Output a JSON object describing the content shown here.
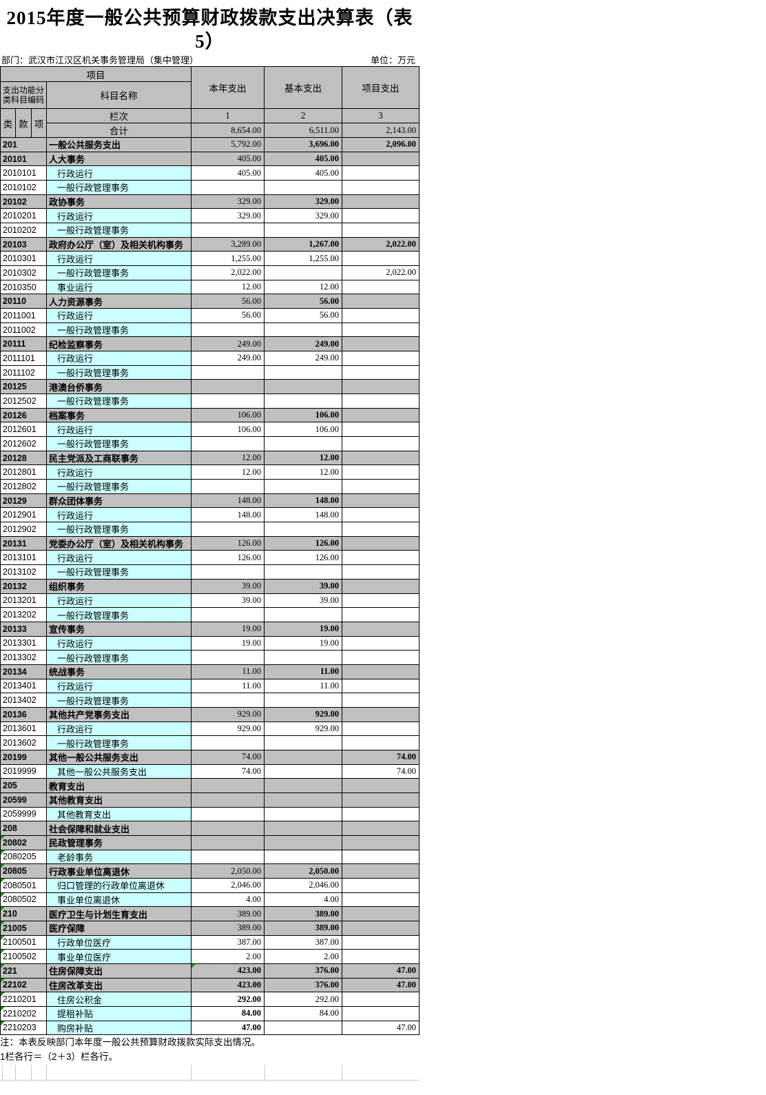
{
  "title": "2015年度一般公共预算财政拨款支出决算表（表5）",
  "meta": {
    "department": "部门：武汉市江汉区机关事务管理局（集中管理）",
    "unit": "单位：万元"
  },
  "header": {
    "project": "项目",
    "code_label": "支出功能分类科目编码",
    "subject_label": "科目名称",
    "col1": "本年支出",
    "col2": "基本支出",
    "col3": "项目支出",
    "cls": "类",
    "section": "款",
    "item": "项",
    "rank_label": "栏次",
    "rank1": "1",
    "rank2": "2",
    "rank3": "3",
    "total_label": "合计",
    "total1": "8,654.00",
    "total2": "6,511.00",
    "total3": "2,143.00"
  },
  "rows": [
    {
      "code": "201",
      "name": "一般公共服务支出",
      "v1": "5,792.00",
      "v2": "3,696.00",
      "v3": "2,096.00",
      "t": "c"
    },
    {
      "code": "20101",
      "name": "人大事务",
      "v1": "405.00",
      "v2": "405.00",
      "v3": "",
      "t": "c"
    },
    {
      "code": "2010101",
      "name": "行政运行",
      "v1": "405.00",
      "v2": "405.00",
      "v3": "",
      "t": "s"
    },
    {
      "code": "2010102",
      "name": "一般行政管理事务",
      "v1": "",
      "v2": "",
      "v3": "",
      "t": "s"
    },
    {
      "code": "20102",
      "name": "政协事务",
      "v1": "329.00",
      "v2": "329.00",
      "v3": "",
      "t": "c"
    },
    {
      "code": "2010201",
      "name": "行政运行",
      "v1": "329.00",
      "v2": "329.00",
      "v3": "",
      "t": "s"
    },
    {
      "code": "2010202",
      "name": "一般行政管理事务",
      "v1": "",
      "v2": "",
      "v3": "",
      "t": "s"
    },
    {
      "code": "20103",
      "name": "政府办公厅（室）及相关机构事务",
      "v1": "3,289.00",
      "v2": "1,267.00",
      "v3": "2,022.00",
      "t": "c"
    },
    {
      "code": "2010301",
      "name": "行政运行",
      "v1": "1,255.00",
      "v2": "1,255.00",
      "v3": "",
      "t": "s"
    },
    {
      "code": "2010302",
      "name": "一般行政管理事务",
      "v1": "2,022.00",
      "v2": "",
      "v3": "2,022.00",
      "t": "s"
    },
    {
      "code": "2010350",
      "name": "事业运行",
      "v1": "12.00",
      "v2": "12.00",
      "v3": "",
      "t": "s"
    },
    {
      "code": "20110",
      "name": "人力资源事务",
      "v1": "56.00",
      "v2": "56.00",
      "v3": "",
      "t": "c"
    },
    {
      "code": "2011001",
      "name": "行政运行",
      "v1": "56.00",
      "v2": "56.00",
      "v3": "",
      "t": "s"
    },
    {
      "code": "2011002",
      "name": "一般行政管理事务",
      "v1": "",
      "v2": "",
      "v3": "",
      "t": "s"
    },
    {
      "code": "20111",
      "name": "纪检监察事务",
      "v1": "249.00",
      "v2": "249.00",
      "v3": "",
      "t": "c"
    },
    {
      "code": "2011101",
      "name": "行政运行",
      "v1": "249.00",
      "v2": "249.00",
      "v3": "",
      "t": "s"
    },
    {
      "code": "2011102",
      "name": "一般行政管理事务",
      "v1": "",
      "v2": "",
      "v3": "",
      "t": "s"
    },
    {
      "code": "20125",
      "name": "港澳台侨事务",
      "v1": "",
      "v2": "",
      "v3": "",
      "t": "c"
    },
    {
      "code": "2012502",
      "name": "一般行政管理事务",
      "v1": "",
      "v2": "",
      "v3": "",
      "t": "s"
    },
    {
      "code": "20126",
      "name": "档案事务",
      "v1": "106.00",
      "v2": "106.00",
      "v3": "",
      "t": "c"
    },
    {
      "code": "2012601",
      "name": "行政运行",
      "v1": "106.00",
      "v2": "106.00",
      "v3": "",
      "t": "s"
    },
    {
      "code": "2012602",
      "name": "一般行政管理事务",
      "v1": "",
      "v2": "",
      "v3": "",
      "t": "s"
    },
    {
      "code": "20128",
      "name": "民主党派及工商联事务",
      "v1": "12.00",
      "v2": "12.00",
      "v3": "",
      "t": "c"
    },
    {
      "code": "2012801",
      "name": "行政运行",
      "v1": "12.00",
      "v2": "12.00",
      "v3": "",
      "t": "s"
    },
    {
      "code": "2012802",
      "name": "一般行政管理事务",
      "v1": "",
      "v2": "",
      "v3": "",
      "t": "s"
    },
    {
      "code": "20129",
      "name": "群众团体事务",
      "v1": "148.00",
      "v2": "148.00",
      "v3": "",
      "t": "c"
    },
    {
      "code": "2012901",
      "name": "行政运行",
      "v1": "148.00",
      "v2": "148.00",
      "v3": "",
      "t": "s"
    },
    {
      "code": "2012902",
      "name": "一般行政管理事务",
      "v1": "",
      "v2": "",
      "v3": "",
      "t": "s"
    },
    {
      "code": "20131",
      "name": "党委办公厅（室）及相关机构事务",
      "v1": "126.00",
      "v2": "126.00",
      "v3": "",
      "t": "c"
    },
    {
      "code": "2013101",
      "name": "行政运行",
      "v1": "126.00",
      "v2": "126.00",
      "v3": "",
      "t": "s"
    },
    {
      "code": "2013102",
      "name": "一般行政管理事务",
      "v1": "",
      "v2": "",
      "v3": "",
      "t": "s"
    },
    {
      "code": "20132",
      "name": "组织事务",
      "v1": "39.00",
      "v2": "39.00",
      "v3": "",
      "t": "c"
    },
    {
      "code": "2013201",
      "name": "行政运行",
      "v1": "39.00",
      "v2": "39.00",
      "v3": "",
      "t": "s"
    },
    {
      "code": "2013202",
      "name": "一般行政管理事务",
      "v1": "",
      "v2": "",
      "v3": "",
      "t": "s"
    },
    {
      "code": "20133",
      "name": "宣传事务",
      "v1": "19.00",
      "v2": "19.00",
      "v3": "",
      "t": "c"
    },
    {
      "code": "2013301",
      "name": "行政运行",
      "v1": "19.00",
      "v2": "19.00",
      "v3": "",
      "t": "s"
    },
    {
      "code": "2013302",
      "name": "一般行政管理事务",
      "v1": "",
      "v2": "",
      "v3": "",
      "t": "s"
    },
    {
      "code": "20134",
      "name": "统战事务",
      "v1": "11.00",
      "v2": "11.00",
      "v3": "",
      "t": "c"
    },
    {
      "code": "2013401",
      "name": "行政运行",
      "v1": "11.00",
      "v2": "11.00",
      "v3": "",
      "t": "s"
    },
    {
      "code": "2013402",
      "name": "一般行政管理事务",
      "v1": "",
      "v2": "",
      "v3": "",
      "t": "s"
    },
    {
      "code": "20136",
      "name": "其他共产党事务支出",
      "v1": "929.00",
      "v2": "929.00",
      "v3": "",
      "t": "c"
    },
    {
      "code": "2013601",
      "name": "行政运行",
      "v1": "929.00",
      "v2": "929.00",
      "v3": "",
      "t": "s"
    },
    {
      "code": "2013602",
      "name": "一般行政管理事务",
      "v1": "",
      "v2": "",
      "v3": "",
      "t": "s"
    },
    {
      "code": "20199",
      "name": "其他一般公共服务支出",
      "v1": "74.00",
      "v2": "",
      "v3": "74.00",
      "t": "c"
    },
    {
      "code": "2019999",
      "name": "其他一般公共服务支出",
      "v1": "74.00",
      "v2": "",
      "v3": "74.00",
      "t": "s"
    },
    {
      "code": "205",
      "name": "教育支出",
      "v1": "",
      "v2": "",
      "v3": "",
      "t": "c"
    },
    {
      "code": "20599",
      "name": "其他教育支出",
      "v1": "",
      "v2": "",
      "v3": "",
      "t": "c"
    },
    {
      "code": "2059999",
      "name": "其他教育支出",
      "v1": "",
      "v2": "",
      "v3": "",
      "t": "s"
    },
    {
      "code": "208",
      "name": "社会保障和就业支出",
      "v1": "",
      "v2": "",
      "v3": "",
      "t": "c"
    },
    {
      "code": "20802",
      "name": "民政管理事务",
      "v1": "",
      "v2": "",
      "v3": "",
      "t": "c",
      "tri": true
    },
    {
      "code": "2080205",
      "name": "老龄事务",
      "v1": "",
      "v2": "",
      "v3": "",
      "t": "s",
      "tri": true
    },
    {
      "code": "20805",
      "name": "行政事业单位离退休",
      "v1": "2,050.00",
      "v2": "2,050.00",
      "v3": "",
      "t": "c",
      "tri": true
    },
    {
      "code": "2080501",
      "name": "归口管理的行政单位离退休",
      "v1": "2,046.00",
      "v2": "2,046.00",
      "v3": "",
      "t": "s",
      "tri": true
    },
    {
      "code": "2080502",
      "name": "事业单位离退休",
      "v1": "4.00",
      "v2": "4.00",
      "v3": "",
      "t": "s",
      "tri": true
    },
    {
      "code": "210",
      "name": "医疗卫生与计划生育支出",
      "v1": "389.00",
      "v2": "389.00",
      "v3": "",
      "t": "c",
      "tri": true
    },
    {
      "code": "21005",
      "name": "医疗保障",
      "v1": "389.00",
      "v2": "389.00",
      "v3": "",
      "t": "c",
      "tri": true
    },
    {
      "code": "2100501",
      "name": "行政单位医疗",
      "v1": "387.00",
      "v2": "387.00",
      "v3": "",
      "t": "s",
      "tri": true
    },
    {
      "code": "2100502",
      "name": "事业单位医疗",
      "v1": "2.00",
      "v2": "2.00",
      "v3": "",
      "t": "s",
      "tri": true
    },
    {
      "code": "221",
      "name": "住房保障支出",
      "v1": "423.00",
      "v2": "376.00",
      "v3": "47.00",
      "t": "c",
      "tri": true,
      "tri1": true,
      "b1": true
    },
    {
      "code": "22102",
      "name": "住房改革支出",
      "v1": "423.00",
      "v2": "376.00",
      "v3": "47.00",
      "t": "c",
      "tri": true,
      "b1": true
    },
    {
      "code": "2210201",
      "name": "住房公积金",
      "v1": "292.00",
      "v2": "292.00",
      "v3": "",
      "t": "s",
      "tri": true,
      "b1": true
    },
    {
      "code": "2210202",
      "name": "提租补贴",
      "v1": "84.00",
      "v2": "84.00",
      "v3": "",
      "t": "s",
      "tri": true,
      "b1": true
    },
    {
      "code": "2210203",
      "name": "购房补贴",
      "v1": "47.00",
      "v2": "",
      "v3": "47.00",
      "t": "s",
      "tri": true,
      "b1": true
    }
  ],
  "notes": [
    "注：本表反映部门本年度一般公共预算财政拨款实际支出情况。",
    "1栏各行＝（2＋3）栏各行。"
  ]
}
